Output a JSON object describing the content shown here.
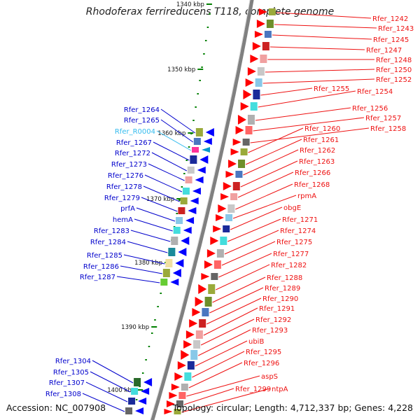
{
  "title": "Rhodoferax ferrireducens T118, complete genome",
  "accession": "Accession: NC_007908",
  "summary": "Topology: circular; Length: 4,712,337 bp; Genes: 4,228",
  "colors": {
    "plus_label": "#ee1111",
    "minus_label": "#0000cc",
    "rna_label": "#33bbee",
    "plus_gene": "#ff0000",
    "minus_gene": "#0000ff",
    "backbone": "#808080",
    "scale_tick": "#008000"
  },
  "scale": [
    {
      "label": "1340 kbp"
    },
    {
      "label": "1350 kbp"
    },
    {
      "label": "1360 kbp"
    },
    {
      "label": "1370 kbp"
    },
    {
      "label": "1380 kbp"
    },
    {
      "label": "1390 kbp"
    },
    {
      "label": "1400 kbp"
    }
  ],
  "plus_genes": [
    {
      "name": "Rfer_1242"
    },
    {
      "name": "Rfer_1243"
    },
    {
      "name": "Rfer_1245"
    },
    {
      "name": "Rfer_1247"
    },
    {
      "name": "Rfer_1248"
    },
    {
      "name": "Rfer_1250"
    },
    {
      "name": "Rfer_1252"
    },
    {
      "name": "Rfer_1255"
    },
    {
      "name": "Rfer_1254"
    },
    {
      "name": "Rfer_1256"
    },
    {
      "name": "Rfer_1257"
    },
    {
      "name": "Rfer_1258"
    },
    {
      "name": "Rfer_1260"
    },
    {
      "name": "Rfer_1261"
    },
    {
      "name": "Rfer_1262"
    },
    {
      "name": "Rfer_1263"
    },
    {
      "name": "Rfer_1266"
    },
    {
      "name": "Rfer_1268"
    },
    {
      "name": "rpmA"
    },
    {
      "name": "obgE"
    },
    {
      "name": "Rfer_1271"
    },
    {
      "name": "Rfer_1274"
    },
    {
      "name": "Rfer_1275"
    },
    {
      "name": "Rfer_1277"
    },
    {
      "name": "Rfer_1282"
    },
    {
      "name": "Rfer_1288"
    },
    {
      "name": "Rfer_1289"
    },
    {
      "name": "Rfer_1290"
    },
    {
      "name": "Rfer_1291"
    },
    {
      "name": "Rfer_1292"
    },
    {
      "name": "Rfer_1293"
    },
    {
      "name": "ubiB"
    },
    {
      "name": "Rfer_1295"
    },
    {
      "name": "Rfer_1296"
    },
    {
      "name": "aspS"
    },
    {
      "name": "Rfer_1299"
    },
    {
      "name": "ntpA"
    }
  ],
  "minus_genes": [
    {
      "name": "Rfer_1264",
      "type": "cds"
    },
    {
      "name": "Rfer_1265",
      "type": "cds"
    },
    {
      "name": "Rfer_R0004",
      "type": "rna"
    },
    {
      "name": "Rfer_1267",
      "type": "cds"
    },
    {
      "name": "Rfer_1272",
      "type": "cds"
    },
    {
      "name": "Rfer_1273",
      "type": "cds"
    },
    {
      "name": "Rfer_1276",
      "type": "cds"
    },
    {
      "name": "Rfer_1278",
      "type": "cds"
    },
    {
      "name": "Rfer_1279",
      "type": "cds"
    },
    {
      "name": "prfA",
      "type": "cds"
    },
    {
      "name": "hemA",
      "type": "cds"
    },
    {
      "name": "Rfer_1283",
      "type": "cds"
    },
    {
      "name": "Rfer_1284",
      "type": "cds"
    },
    {
      "name": "Rfer_1285",
      "type": "cds"
    },
    {
      "name": "Rfer_1286",
      "type": "cds"
    },
    {
      "name": "Rfer_1287",
      "type": "cds"
    },
    {
      "name": "Rfer_1304",
      "type": "cds"
    },
    {
      "name": "Rfer_1305",
      "type": "cds"
    },
    {
      "name": "Rfer_1307",
      "type": "cds"
    },
    {
      "name": "Rfer_1308",
      "type": "cds"
    }
  ]
}
